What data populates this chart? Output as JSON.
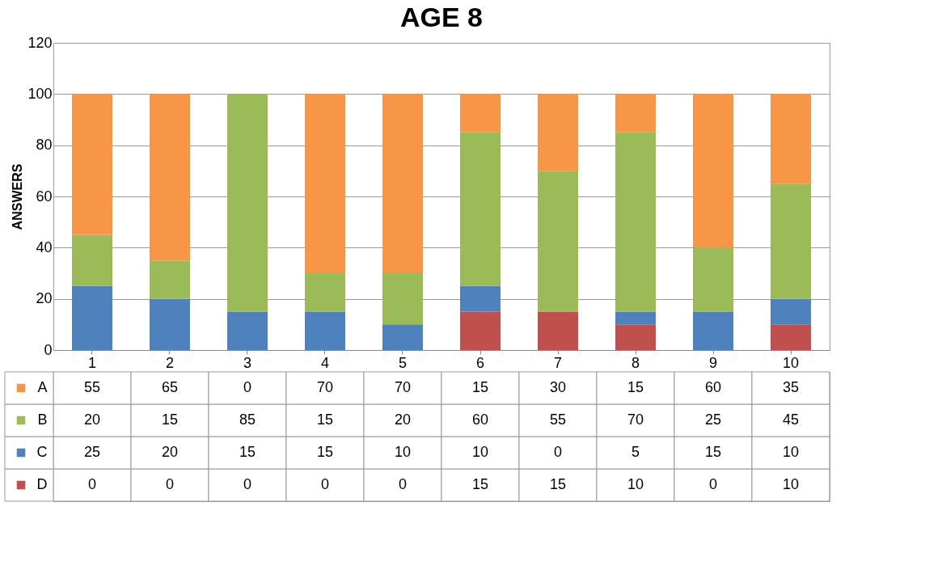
{
  "chart_data": {
    "type": "bar",
    "title": "AGE 8",
    "ylabel": "ANSWERS",
    "stacked": true,
    "categories": [
      "1",
      "2",
      "3",
      "4",
      "5",
      "6",
      "7",
      "8",
      "9",
      "10"
    ],
    "series": [
      {
        "name": "D",
        "color": "#c0504d",
        "values": [
          0,
          0,
          0,
          0,
          0,
          15,
          15,
          10,
          0,
          10
        ]
      },
      {
        "name": "C",
        "color": "#4f81bd",
        "values": [
          25,
          20,
          15,
          15,
          10,
          10,
          0,
          5,
          15,
          10
        ]
      },
      {
        "name": "B",
        "color": "#9bbb59",
        "values": [
          20,
          15,
          85,
          15,
          20,
          60,
          55,
          70,
          25,
          45
        ]
      },
      {
        "name": "A",
        "color": "#f79646",
        "values": [
          55,
          65,
          0,
          70,
          70,
          15,
          30,
          15,
          60,
          35
        ]
      }
    ],
    "ylim": [
      0,
      120
    ],
    "yticks": [
      0,
      20,
      40,
      60,
      80,
      100,
      120
    ],
    "grid": "y",
    "data_labels": true,
    "legend": "bottom"
  }
}
